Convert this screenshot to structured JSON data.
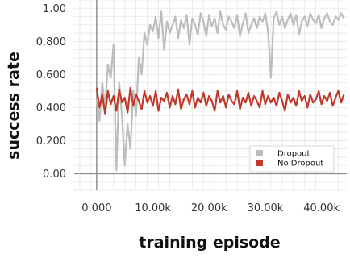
{
  "chart_data": {
    "type": "line",
    "title": "",
    "xlabel": "training episode",
    "ylabel": "success rate",
    "xlim": [
      -4000,
      44500
    ],
    "ylim": [
      -0.1,
      1.05
    ],
    "x_ticks": [
      0,
      10000,
      20000,
      30000,
      40000
    ],
    "x_tick_labels": [
      "0.000",
      "10.00k",
      "20.00k",
      "30.00k",
      "40.00k"
    ],
    "y_ticks": [
      0.0,
      0.2,
      0.4,
      0.6,
      0.8,
      1.0
    ],
    "y_tick_labels": [
      "0.00",
      "0.200",
      "0.400",
      "0.600",
      "0.800",
      "1.00"
    ],
    "grid": true,
    "legend_position": "bottom-right",
    "series": [
      {
        "name": "Dropout",
        "color": "#bdbdbd",
        "x": [
          0,
          500,
          1000,
          1500,
          2000,
          2500,
          3000,
          3500,
          4000,
          4500,
          5000,
          5500,
          6000,
          6500,
          7000,
          7500,
          8000,
          8500,
          9000,
          9500,
          10000,
          10500,
          11000,
          11500,
          12000,
          12500,
          13000,
          13500,
          14000,
          14500,
          15000,
          15500,
          16000,
          16500,
          17000,
          17500,
          18000,
          18500,
          19000,
          19500,
          20000,
          20500,
          21000,
          21500,
          22000,
          22500,
          23000,
          23500,
          24000,
          24500,
          25000,
          25500,
          26000,
          26500,
          27000,
          27500,
          28000,
          28500,
          29000,
          29500,
          30000,
          30500,
          31000,
          31500,
          32000,
          32500,
          33000,
          33500,
          34000,
          34500,
          35000,
          35500,
          36000,
          36500,
          37000,
          37500,
          38000,
          38500,
          39000,
          39500,
          40000,
          40500,
          41000,
          41500,
          42000,
          42500,
          43000,
          43500,
          44000
        ],
        "values": [
          0.45,
          0.32,
          0.55,
          0.4,
          0.66,
          0.58,
          0.78,
          0.02,
          0.55,
          0.35,
          0.05,
          0.3,
          0.15,
          0.5,
          0.35,
          0.7,
          0.6,
          0.85,
          0.78,
          0.9,
          0.86,
          0.95,
          0.82,
          0.98,
          0.75,
          0.92,
          0.85,
          0.9,
          0.95,
          0.82,
          0.93,
          0.88,
          0.96,
          0.78,
          0.94,
          0.9,
          0.84,
          0.97,
          0.92,
          0.83,
          0.96,
          0.89,
          0.94,
          0.85,
          0.98,
          0.9,
          0.87,
          0.95,
          0.92,
          0.88,
          0.96,
          0.83,
          0.91,
          0.97,
          0.85,
          0.9,
          0.94,
          0.88,
          0.95,
          0.92,
          0.97,
          0.86,
          0.58,
          0.94,
          0.98,
          0.9,
          0.95,
          0.88,
          0.93,
          0.97,
          0.9,
          0.96,
          0.84,
          0.92,
          0.95,
          0.89,
          0.97,
          0.93,
          0.91,
          0.96,
          0.88,
          0.94,
          0.97,
          0.92,
          0.9,
          0.95,
          0.93,
          0.97,
          0.94
        ]
      },
      {
        "name": "No Dropout",
        "color": "#c0392b",
        "x": [
          0,
          500,
          1000,
          1500,
          2000,
          2500,
          3000,
          3500,
          4000,
          4500,
          5000,
          5500,
          6000,
          6500,
          7000,
          7500,
          8000,
          8500,
          9000,
          9500,
          10000,
          10500,
          11000,
          11500,
          12000,
          12500,
          13000,
          13500,
          14000,
          14500,
          15000,
          15500,
          16000,
          16500,
          17000,
          17500,
          18000,
          18500,
          19000,
          19500,
          20000,
          20500,
          21000,
          21500,
          22000,
          22500,
          23000,
          23500,
          24000,
          24500,
          25000,
          25500,
          26000,
          26500,
          27000,
          27500,
          28000,
          28500,
          29000,
          29500,
          30000,
          30500,
          31000,
          31500,
          32000,
          32500,
          33000,
          33500,
          34000,
          34500,
          35000,
          35500,
          36000,
          36500,
          37000,
          37500,
          38000,
          38500,
          39000,
          39500,
          40000,
          40500,
          41000,
          41500,
          42000,
          42500,
          43000,
          43500,
          44000
        ],
        "values": [
          0.52,
          0.4,
          0.48,
          0.36,
          0.5,
          0.42,
          0.47,
          0.38,
          0.51,
          0.43,
          0.46,
          0.37,
          0.52,
          0.41,
          0.48,
          0.44,
          0.39,
          0.5,
          0.43,
          0.47,
          0.41,
          0.5,
          0.38,
          0.46,
          0.44,
          0.49,
          0.4,
          0.47,
          0.42,
          0.51,
          0.39,
          0.45,
          0.48,
          0.42,
          0.5,
          0.4,
          0.46,
          0.43,
          0.49,
          0.41,
          0.47,
          0.44,
          0.38,
          0.5,
          0.43,
          0.47,
          0.4,
          0.48,
          0.44,
          0.42,
          0.5,
          0.39,
          0.46,
          0.43,
          0.49,
          0.41,
          0.47,
          0.44,
          0.4,
          0.5,
          0.42,
          0.47,
          0.43,
          0.46,
          0.41,
          0.49,
          0.44,
          0.38,
          0.48,
          0.43,
          0.46,
          0.41,
          0.5,
          0.44,
          0.47,
          0.4,
          0.48,
          0.43,
          0.45,
          0.5,
          0.42,
          0.47,
          0.44,
          0.49,
          0.41,
          0.46,
          0.5,
          0.43,
          0.48
        ]
      }
    ]
  }
}
